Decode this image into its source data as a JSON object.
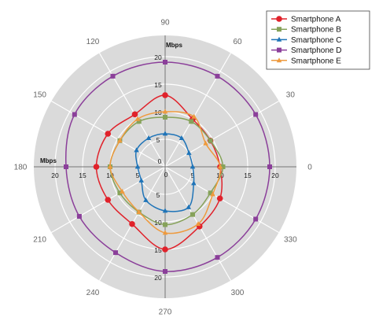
{
  "chart_data": {
    "type": "polar-line",
    "angle_unit": "degrees",
    "angle_tick_labels": [
      "0",
      "30",
      "60",
      "90",
      "120",
      "150",
      "180",
      "210",
      "240",
      "270",
      "300",
      "330"
    ],
    "radial_axis": {
      "unit": "Mbps",
      "range": [
        0,
        20
      ],
      "ticks": [
        "0",
        "5",
        "10",
        "15",
        "20"
      ]
    },
    "legend_position": "top-right",
    "grid": true,
    "series": [
      {
        "name": "Smartphone A",
        "color": "#e0222b",
        "marker": "circle",
        "points": [
          [
            0,
            10
          ],
          [
            30,
            9.5
          ],
          [
            60,
            10
          ],
          [
            90,
            13
          ],
          [
            120,
            11
          ],
          [
            150,
            12
          ],
          [
            180,
            12.5
          ],
          [
            210,
            12
          ],
          [
            240,
            12
          ],
          [
            270,
            15
          ],
          [
            300,
            12.5
          ],
          [
            330,
            11.5
          ]
        ]
      },
      {
        "name": "Smartphone B",
        "color": "#86a25a",
        "marker": "square",
        "points": [
          [
            0,
            10.5
          ],
          [
            30,
            9.5
          ],
          [
            60,
            9.5
          ],
          [
            90,
            9
          ],
          [
            120,
            9.5
          ],
          [
            150,
            9.5
          ],
          [
            180,
            10
          ],
          [
            210,
            9.5
          ],
          [
            240,
            9.5
          ],
          [
            270,
            10.5
          ],
          [
            300,
            10
          ],
          [
            330,
            9.5
          ]
        ]
      },
      {
        "name": "Smartphone C",
        "color": "#1f74b8",
        "marker": "triangle",
        "points": [
          [
            0,
            5
          ],
          [
            30,
            5
          ],
          [
            60,
            6
          ],
          [
            90,
            6
          ],
          [
            120,
            6
          ],
          [
            150,
            6
          ],
          [
            180,
            5
          ],
          [
            210,
            5
          ],
          [
            240,
            7
          ],
          [
            270,
            8
          ],
          [
            300,
            8.5
          ],
          [
            330,
            6
          ]
        ]
      },
      {
        "name": "Smartphone D",
        "color": "#8b3f9a",
        "marker": "square",
        "points": [
          [
            0,
            19
          ],
          [
            30,
            19
          ],
          [
            60,
            19
          ],
          [
            90,
            19
          ],
          [
            120,
            19
          ],
          [
            150,
            19
          ],
          [
            180,
            18
          ],
          [
            210,
            18
          ],
          [
            240,
            18
          ],
          [
            270,
            19
          ],
          [
            300,
            19
          ],
          [
            330,
            19
          ]
        ]
      },
      {
        "name": "Smartphone E",
        "color": "#ee9a3e",
        "marker": "triangle",
        "points": [
          [
            0,
            10
          ],
          [
            30,
            8.5
          ],
          [
            60,
            10.5
          ],
          [
            90,
            10
          ],
          [
            120,
            10
          ],
          [
            150,
            9.5
          ],
          [
            180,
            10
          ],
          [
            210,
            9
          ],
          [
            240,
            9.5
          ],
          [
            270,
            12
          ],
          [
            300,
            12
          ],
          [
            330,
            10
          ]
        ]
      }
    ]
  }
}
